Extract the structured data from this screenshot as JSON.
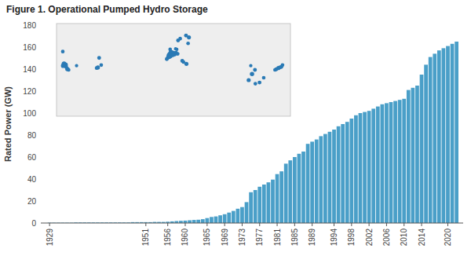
{
  "chart_data": [
    {
      "type": "bar",
      "title": "Figure 1. Operational Pumped Hydro Storage",
      "ylabel": "Rated Power (GW)",
      "color": "#4a9fc8",
      "x": [
        1929,
        1930,
        1931,
        1932,
        1933,
        1934,
        1935,
        1936,
        1937,
        1938,
        1939,
        1940,
        1941,
        1942,
        1943,
        1944,
        1945,
        1946,
        1947,
        1948,
        1949,
        1950,
        1951,
        1952,
        1953,
        1954,
        1955,
        1956,
        1957,
        1958,
        1959,
        1960,
        1961,
        1962,
        1963,
        1964,
        1965,
        1966,
        1967,
        1968,
        1969,
        1970,
        1971,
        1972,
        1973,
        1974,
        1975,
        1976,
        1977,
        1978,
        1979,
        1980,
        1981,
        1982,
        1983,
        1984,
        1985,
        1986,
        1987,
        1988,
        1989,
        1990,
        1991,
        1992,
        1993,
        1994,
        1995,
        1996,
        1997,
        1998,
        1999,
        2000,
        2001,
        2002,
        2003,
        2004,
        2005,
        2006,
        2007,
        2008,
        2009,
        2010,
        2011,
        2012,
        2013,
        2014,
        2015,
        2016,
        2017,
        2018,
        2019,
        2020,
        2021,
        2022
      ],
      "values": [
        0.3,
        0.3,
        0.3,
        0.3,
        0.3,
        0.3,
        0.5,
        0.5,
        0.5,
        0.5,
        0.5,
        0.5,
        0.5,
        0.5,
        0.5,
        0.5,
        0.5,
        0.5,
        0.5,
        0.8,
        0.8,
        0.8,
        0.8,
        0.8,
        1.0,
        1.0,
        1.0,
        1.2,
        1.5,
        1.8,
        2.0,
        2.2,
        2.5,
        2.8,
        3.0,
        3.5,
        4.5,
        5.5,
        6.0,
        7.0,
        8.0,
        9.5,
        11.0,
        13.0,
        14.5,
        19.0,
        28.0,
        30.0,
        33.0,
        35.0,
        37.0,
        39.5,
        44.5,
        47.0,
        54.0,
        57.0,
        60.0,
        63.0,
        65.0,
        72.0,
        74.0,
        76.0,
        79.0,
        81.0,
        83.0,
        85.0,
        88.0,
        90.0,
        92.0,
        95.0,
        98.0,
        100.0,
        101.0,
        102.0,
        104.0,
        106.0,
        108.0,
        109.0,
        110.0,
        111.0,
        112.0,
        113.0,
        121.0,
        123.0,
        125.0,
        135.0,
        144.0,
        151.0,
        154.0,
        157.0,
        159.0,
        161.0,
        163.0,
        165.0
      ],
      "xlim": [
        1927,
        2023.5
      ],
      "xticks": [
        1929,
        1951,
        1956,
        1960,
        1965,
        1969,
        1973,
        1977,
        1981,
        1985,
        1989,
        1994,
        1998,
        2002,
        2006,
        2010,
        2014,
        2020
      ],
      "ylim": [
        0,
        180
      ],
      "yticks": [
        0,
        20,
        40,
        60,
        80,
        100,
        120,
        140,
        160,
        180
      ],
      "grid": false
    },
    {
      "type": "scatter",
      "color": "#2a7ab5",
      "x": [
        -122.5,
        -119.5,
        -117.0,
        -121.0,
        -118.5,
        -80.5,
        -76.5,
        -79.0,
        -82.0,
        -106.0,
        -115.5,
        -122.0,
        6.5,
        7.0,
        8.5,
        10.0,
        11.5,
        13.0,
        4.5,
        3.0,
        2.0,
        5.5,
        9.0,
        15.0,
        20.5,
        22.0,
        25.5,
        14.0,
        6.0,
        8.0,
        12.5,
        27.5,
        28.5,
        25.0,
        18.0,
        15.5,
        131.5,
        133.0,
        135.5,
        137.0,
        139.0,
        140.5,
        100.0,
        104.0,
        108.0,
        113.0,
        118.0,
        107.5,
        102.5
      ],
      "values": [
        48.7,
        37.5,
        34.2,
        38.5,
        36.0,
        35.5,
        37.5,
        43.5,
        35.0,
        37.0,
        33.5,
        37.0,
        46.5,
        47.5,
        47.0,
        47.5,
        46.5,
        47.8,
        44.5,
        43.5,
        42.5,
        45.5,
        46.0,
        46.8,
        41.0,
        40.0,
        38.5,
        50.5,
        50.5,
        48.5,
        51.0,
        55.5,
        60.5,
        62.0,
        59.5,
        58.0,
        33.5,
        34.0,
        35.0,
        35.5,
        36.0,
        37.5,
        25.0,
        30.0,
        22.0,
        23.0,
        27.0,
        33.5,
        37.0
      ],
      "sizes": [
        18,
        35,
        25,
        30,
        20,
        22,
        18,
        20,
        18,
        15,
        18,
        28,
        40,
        35,
        30,
        25,
        22,
        20,
        30,
        18,
        20,
        50,
        28,
        18,
        20,
        18,
        22,
        15,
        18,
        16,
        14,
        18,
        22,
        20,
        18,
        20,
        18,
        20,
        22,
        18,
        20,
        18,
        22,
        25,
        18,
        20,
        18,
        20,
        15
      ],
      "xlim": [
        -130,
        150
      ],
      "ylim": [
        -5,
        72
      ],
      "tick_labels": false
    }
  ]
}
